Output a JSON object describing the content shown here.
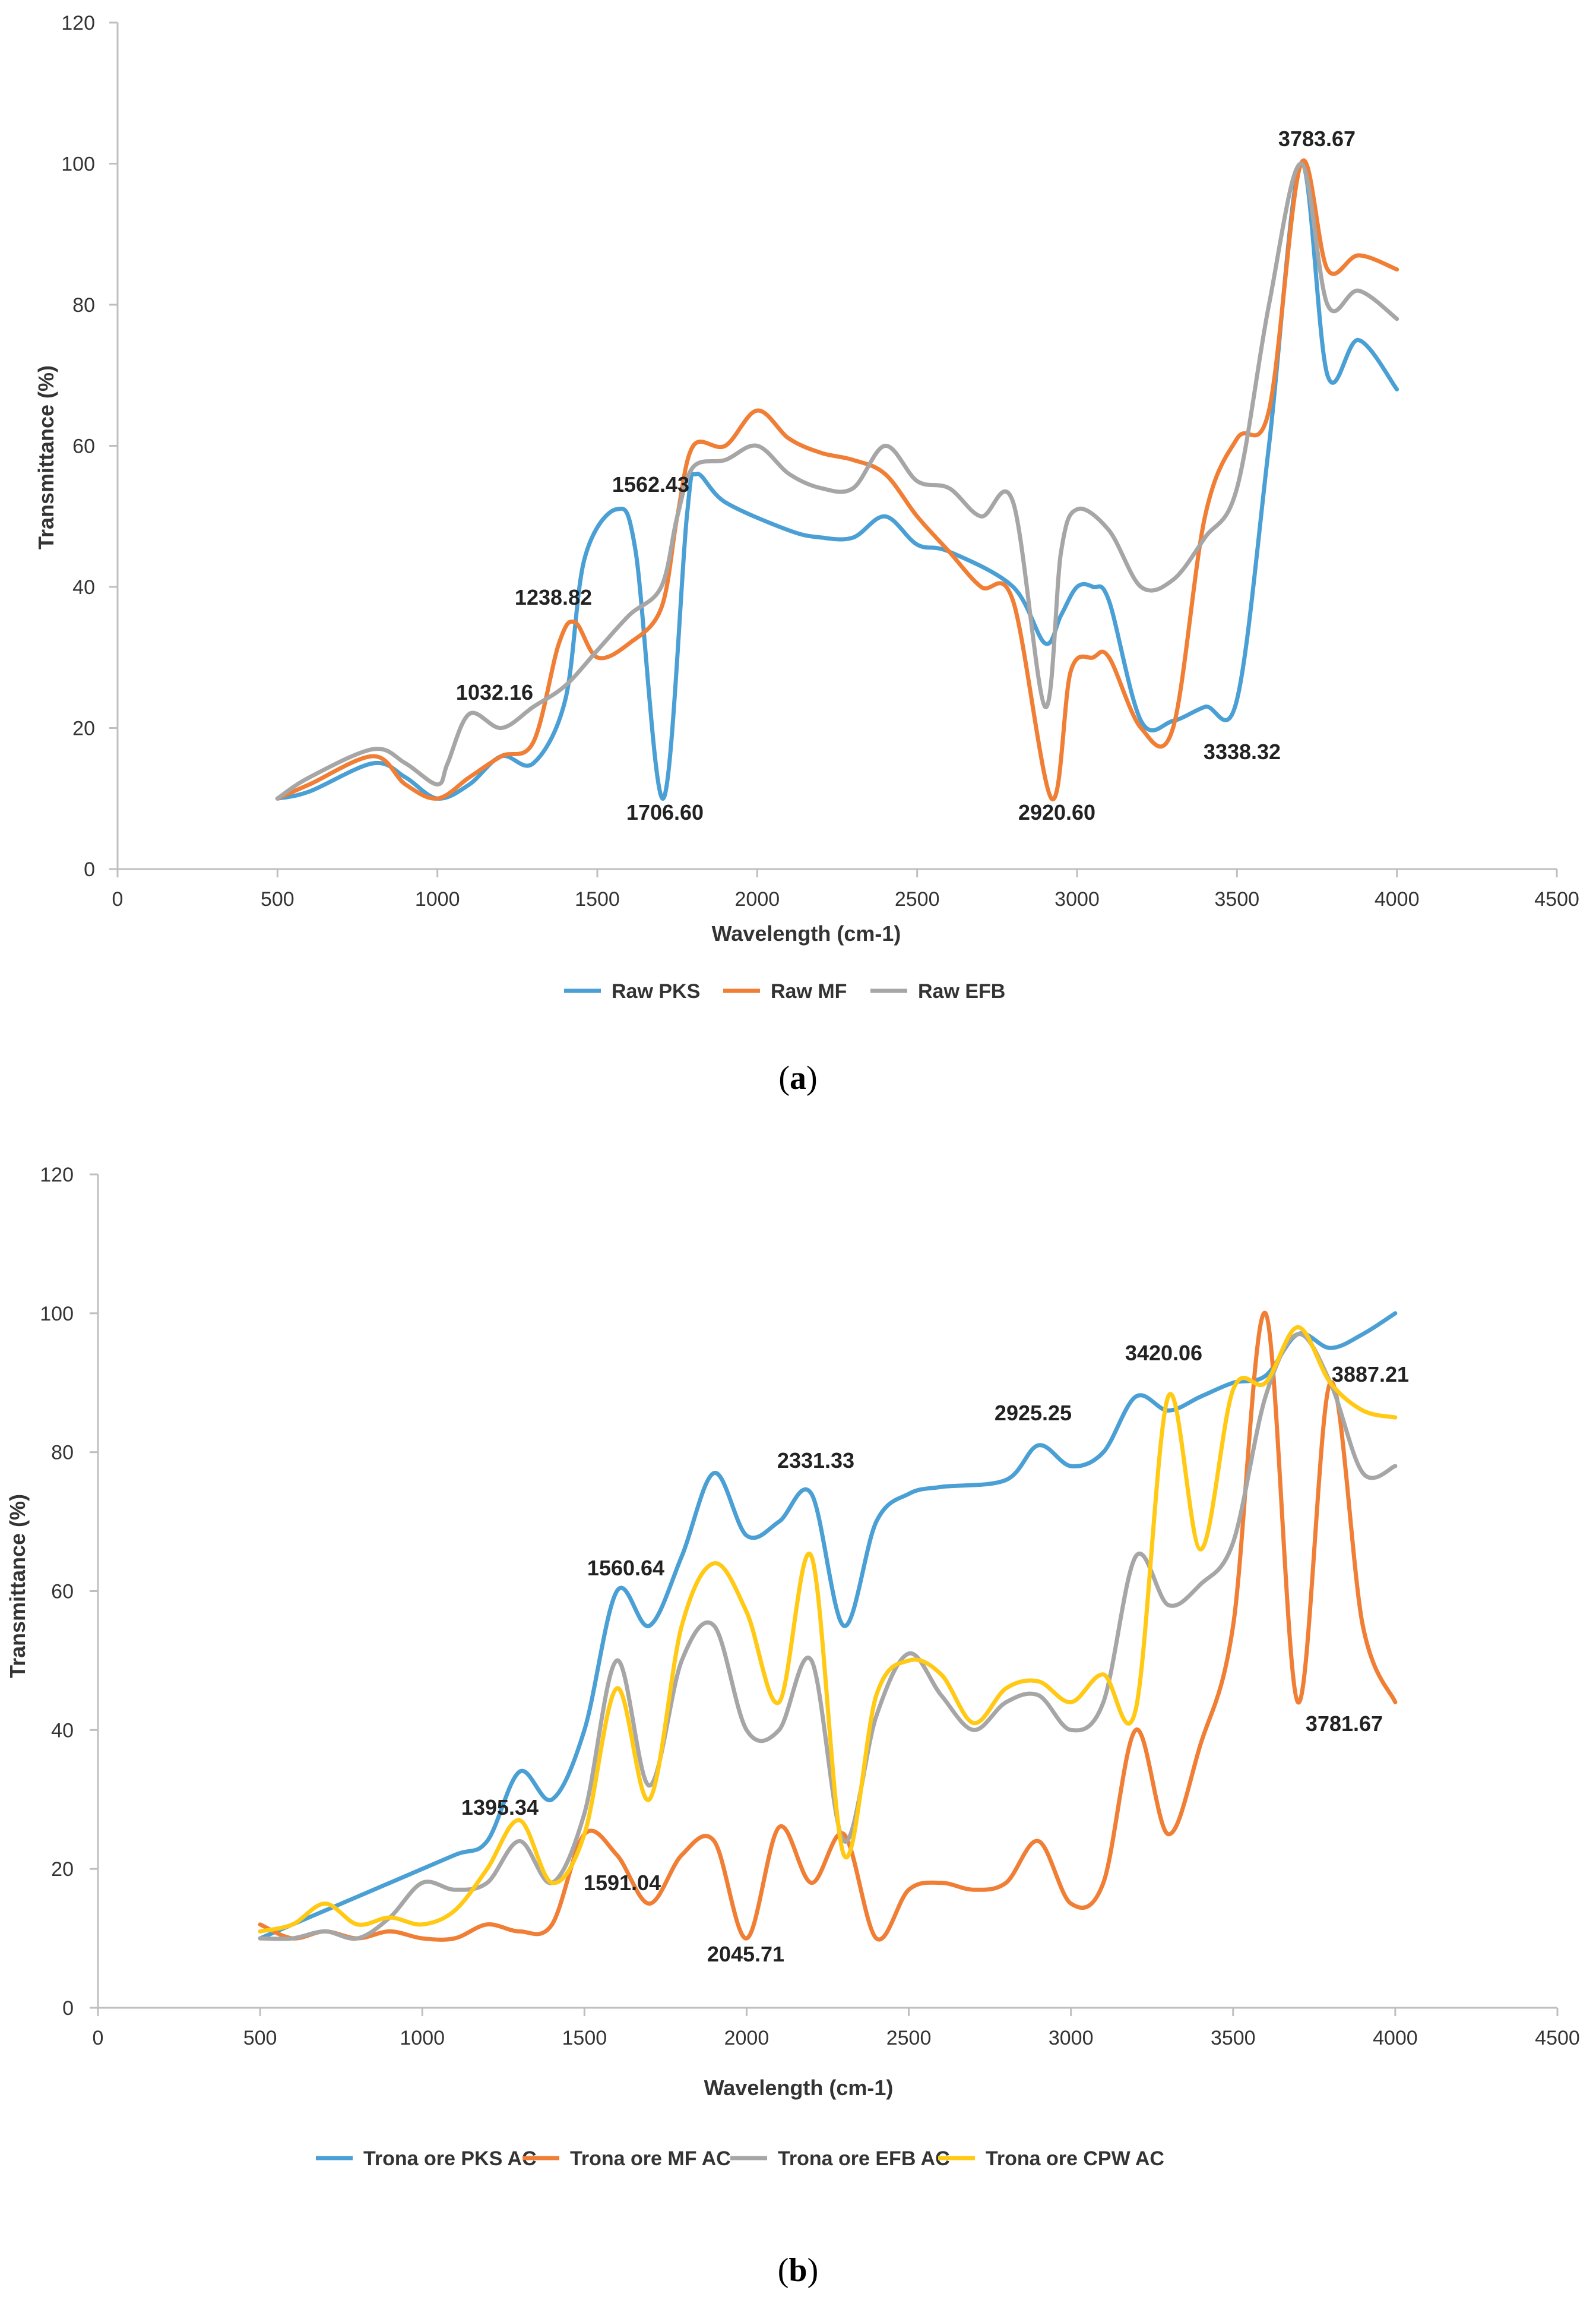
{
  "chart_data": [
    {
      "type": "line",
      "panel": "a",
      "caption": {
        "open": "(",
        "letter": "a",
        "close": ")"
      },
      "xlabel": "Wavelength (cm-1)",
      "ylabel": "Transmittance (%)",
      "xlim": [
        0,
        4500
      ],
      "ylim": [
        0,
        120
      ],
      "xticks": [
        0,
        500,
        1000,
        1500,
        2000,
        2500,
        3000,
        3500,
        4000,
        4500
      ],
      "yticks": [
        0,
        20,
        40,
        60,
        80,
        100,
        120
      ],
      "legend_position": "bottom",
      "series": [
        {
          "name": "Raw PKS",
          "color": "#4a9fd5",
          "points": [
            [
              500,
              10
            ],
            [
              600,
              11
            ],
            [
              800,
              15
            ],
            [
              900,
              13
            ],
            [
              1000,
              10
            ],
            [
              1100,
              12
            ],
            [
              1200,
              16
            ],
            [
              1300,
              15
            ],
            [
              1400,
              24
            ],
            [
              1460,
              44
            ],
            [
              1560,
              51
            ],
            [
              1620,
              45
            ],
            [
              1706,
              10
            ],
            [
              1780,
              50
            ],
            [
              1810,
              56
            ],
            [
              1900,
              52
            ],
            [
              2100,
              48
            ],
            [
              2200,
              47
            ],
            [
              2300,
              47
            ],
            [
              2400,
              50
            ],
            [
              2500,
              46
            ],
            [
              2600,
              45
            ],
            [
              2800,
              40
            ],
            [
              2900,
              32
            ],
            [
              2950,
              36
            ],
            [
              3000,
              40
            ],
            [
              3050,
              40
            ],
            [
              3100,
              38
            ],
            [
              3200,
              21
            ],
            [
              3300,
              21
            ],
            [
              3400,
              23
            ],
            [
              3500,
              24
            ],
            [
              3600,
              60
            ],
            [
              3700,
              100
            ],
            [
              3783,
              70
            ],
            [
              3880,
              75
            ],
            [
              4000,
              68
            ]
          ]
        },
        {
          "name": "Raw MF",
          "color": "#f07e35",
          "points": [
            [
              500,
              10
            ],
            [
              600,
              12
            ],
            [
              800,
              16
            ],
            [
              900,
              12
            ],
            [
              1000,
              10
            ],
            [
              1100,
              13
            ],
            [
              1200,
              16
            ],
            [
              1300,
              18
            ],
            [
              1380,
              32
            ],
            [
              1430,
              35
            ],
            [
              1500,
              30
            ],
            [
              1600,
              32
            ],
            [
              1700,
              37
            ],
            [
              1750,
              50
            ],
            [
              1800,
              60
            ],
            [
              1900,
              60
            ],
            [
              2000,
              65
            ],
            [
              2100,
              61
            ],
            [
              2200,
              59
            ],
            [
              2300,
              58
            ],
            [
              2400,
              56
            ],
            [
              2500,
              50
            ],
            [
              2600,
              45
            ],
            [
              2700,
              40
            ],
            [
              2800,
              38
            ],
            [
              2920,
              10
            ],
            [
              2980,
              28
            ],
            [
              3050,
              30
            ],
            [
              3100,
              30
            ],
            [
              3200,
              20
            ],
            [
              3300,
              20
            ],
            [
              3400,
              50
            ],
            [
              3500,
              61
            ],
            [
              3600,
              65
            ],
            [
              3700,
              100
            ],
            [
              3783,
              85
            ],
            [
              3880,
              87
            ],
            [
              4000,
              85
            ]
          ]
        },
        {
          "name": "Raw EFB",
          "color": "#a6a6a6",
          "points": [
            [
              500,
              10
            ],
            [
              600,
              13
            ],
            [
              800,
              17
            ],
            [
              900,
              15
            ],
            [
              1000,
              12
            ],
            [
              1032,
              15
            ],
            [
              1100,
              22
            ],
            [
              1200,
              20
            ],
            [
              1300,
              23
            ],
            [
              1400,
              26
            ],
            [
              1500,
              31
            ],
            [
              1600,
              36
            ],
            [
              1700,
              40
            ],
            [
              1750,
              50
            ],
            [
              1800,
              57
            ],
            [
              1900,
              58
            ],
            [
              2000,
              60
            ],
            [
              2100,
              56
            ],
            [
              2200,
              54
            ],
            [
              2300,
              54
            ],
            [
              2400,
              60
            ],
            [
              2500,
              55
            ],
            [
              2600,
              54
            ],
            [
              2700,
              50
            ],
            [
              2800,
              52
            ],
            [
              2900,
              23
            ],
            [
              2950,
              45
            ],
            [
              3000,
              51
            ],
            [
              3100,
              48
            ],
            [
              3200,
              40
            ],
            [
              3300,
              41
            ],
            [
              3400,
              47
            ],
            [
              3500,
              54
            ],
            [
              3600,
              80
            ],
            [
              3700,
              100
            ],
            [
              3783,
              80
            ],
            [
              3880,
              82
            ],
            [
              4000,
              78
            ]
          ]
        }
      ],
      "annotations": [
        "1562.43",
        "1238.82",
        "1032.16",
        "1706.60",
        "2920.60",
        "3338.32",
        "3783.67"
      ]
    },
    {
      "type": "line",
      "panel": "b",
      "caption": {
        "open": "(",
        "letter": "b",
        "close": ")"
      },
      "xlabel": "Wavelength (cm-1)",
      "ylabel": "Transmittance (%)",
      "xlim": [
        0,
        4500
      ],
      "ylim": [
        0,
        120
      ],
      "xticks": [
        0,
        500,
        1000,
        1500,
        2000,
        2500,
        3000,
        3500,
        4000,
        4500
      ],
      "yticks": [
        0,
        20,
        40,
        60,
        80,
        100,
        120
      ],
      "legend_position": "bottom",
      "series": [
        {
          "name": "Trona ore PKS AC",
          "color": "#4a9fd5",
          "points": [
            [
              500,
              10
            ],
            [
              700,
              14
            ],
            [
              900,
              18
            ],
            [
              1100,
              22
            ],
            [
              1200,
              24
            ],
            [
              1300,
              34
            ],
            [
              1400,
              30
            ],
            [
              1500,
              40
            ],
            [
              1600,
              60
            ],
            [
              1700,
              55
            ],
            [
              1800,
              65
            ],
            [
              1900,
              77
            ],
            [
              2000,
              68
            ],
            [
              2100,
              70
            ],
            [
              2200,
              74
            ],
            [
              2300,
              55
            ],
            [
              2400,
              70
            ],
            [
              2500,
              74
            ],
            [
              2600,
              75
            ],
            [
              2800,
              76
            ],
            [
              2900,
              81
            ],
            [
              3000,
              78
            ],
            [
              3100,
              80
            ],
            [
              3200,
              88
            ],
            [
              3300,
              86
            ],
            [
              3400,
              88
            ],
            [
              3500,
              90
            ],
            [
              3600,
              91
            ],
            [
              3700,
              97
            ],
            [
              3800,
              95
            ],
            [
              3900,
              97
            ],
            [
              4000,
              100
            ]
          ]
        },
        {
          "name": "Trona ore MF AC",
          "color": "#f07e35",
          "points": [
            [
              500,
              12
            ],
            [
              600,
              10
            ],
            [
              700,
              11
            ],
            [
              800,
              10
            ],
            [
              900,
              11
            ],
            [
              1000,
              10
            ],
            [
              1100,
              10
            ],
            [
              1200,
              12
            ],
            [
              1300,
              11
            ],
            [
              1400,
              12
            ],
            [
              1500,
              25
            ],
            [
              1600,
              22
            ],
            [
              1700,
              15
            ],
            [
              1800,
              22
            ],
            [
              1900,
              24
            ],
            [
              2000,
              10
            ],
            [
              2100,
              26
            ],
            [
              2200,
              18
            ],
            [
              2300,
              25
            ],
            [
              2400,
              10
            ],
            [
              2500,
              17
            ],
            [
              2600,
              18
            ],
            [
              2700,
              17
            ],
            [
              2800,
              18
            ],
            [
              2900,
              24
            ],
            [
              3000,
              15
            ],
            [
              3100,
              18
            ],
            [
              3200,
              40
            ],
            [
              3300,
              25
            ],
            [
              3400,
              38
            ],
            [
              3500,
              55
            ],
            [
              3600,
              100
            ],
            [
              3700,
              44
            ],
            [
              3800,
              90
            ],
            [
              3900,
              55
            ],
            [
              4000,
              44
            ]
          ]
        },
        {
          "name": "Trona ore EFB AC",
          "color": "#a6a6a6",
          "points": [
            [
              500,
              10
            ],
            [
              600,
              10
            ],
            [
              700,
              11
            ],
            [
              800,
              10
            ],
            [
              900,
              13
            ],
            [
              1000,
              18
            ],
            [
              1100,
              17
            ],
            [
              1200,
              18
            ],
            [
              1300,
              24
            ],
            [
              1400,
              18
            ],
            [
              1500,
              28
            ],
            [
              1600,
              50
            ],
            [
              1700,
              32
            ],
            [
              1800,
              50
            ],
            [
              1900,
              55
            ],
            [
              2000,
              40
            ],
            [
              2100,
              40
            ],
            [
              2200,
              50
            ],
            [
              2300,
              24
            ],
            [
              2400,
              42
            ],
            [
              2500,
              51
            ],
            [
              2600,
              45
            ],
            [
              2700,
              40
            ],
            [
              2800,
              44
            ],
            [
              2900,
              45
            ],
            [
              3000,
              40
            ],
            [
              3100,
              44
            ],
            [
              3200,
              65
            ],
            [
              3300,
              58
            ],
            [
              3400,
              61
            ],
            [
              3500,
              67
            ],
            [
              3600,
              88
            ],
            [
              3700,
              97
            ],
            [
              3800,
              90
            ],
            [
              3900,
              77
            ],
            [
              4000,
              78
            ]
          ]
        },
        {
          "name": "Trona ore  CPW AC",
          "color": "#ffc914",
          "points": [
            [
              500,
              11
            ],
            [
              600,
              12
            ],
            [
              700,
              15
            ],
            [
              800,
              12
            ],
            [
              900,
              13
            ],
            [
              1000,
              12
            ],
            [
              1100,
              14
            ],
            [
              1200,
              20
            ],
            [
              1300,
              27
            ],
            [
              1400,
              18
            ],
            [
              1500,
              25
            ],
            [
              1600,
              46
            ],
            [
              1700,
              30
            ],
            [
              1800,
              55
            ],
            [
              1900,
              64
            ],
            [
              2000,
              57
            ],
            [
              2100,
              44
            ],
            [
              2200,
              65
            ],
            [
              2300,
              22
            ],
            [
              2400,
              45
            ],
            [
              2500,
              50
            ],
            [
              2600,
              48
            ],
            [
              2700,
              41
            ],
            [
              2800,
              46
            ],
            [
              2900,
              47
            ],
            [
              3000,
              44
            ],
            [
              3100,
              48
            ],
            [
              3200,
              43
            ],
            [
              3300,
              88
            ],
            [
              3400,
              66
            ],
            [
              3500,
              89
            ],
            [
              3600,
              90
            ],
            [
              3700,
              98
            ],
            [
              3800,
              90
            ],
            [
              3900,
              86
            ],
            [
              4000,
              85
            ]
          ]
        }
      ],
      "annotations": [
        "1560.64",
        "1395.34",
        "1591.04",
        "2045.71",
        "2331.33",
        "2925.25",
        "3420.06",
        "3887.21",
        "3781.67"
      ]
    }
  ]
}
